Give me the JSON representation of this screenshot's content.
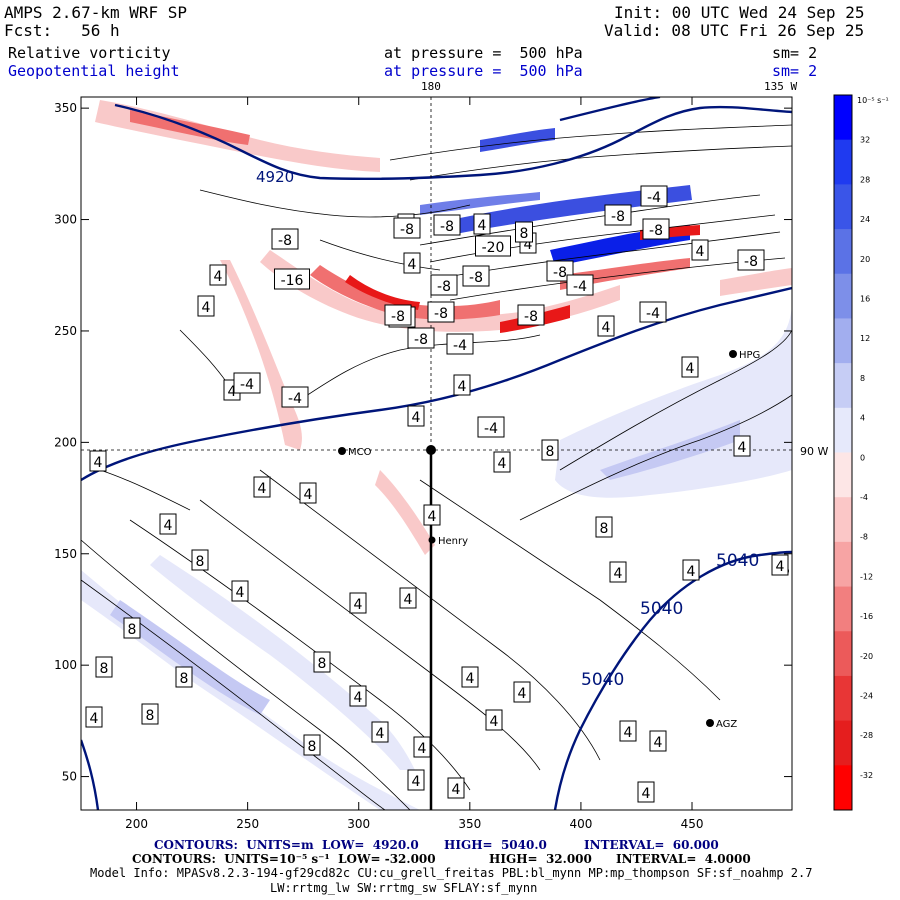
{
  "header": {
    "model": "AMPS 2.67-km WRF SP",
    "fcst": "Fcst:   56 h",
    "init": "Init: 00 UTC Wed 24 Sep 25",
    "valid": "Valid: 08 UTC Fri 26 Sep 25",
    "field1_name": "Relative vorticity",
    "field1_level": "at pressure =  500 hPa",
    "field1_sm": "sm= 2",
    "field2_name": "Geopotential height",
    "field2_level": "at pressure =  500 hPa",
    "field2_sm": "sm= 2"
  },
  "map_labels": {
    "lon_180": "180",
    "lon_135w": "135 W",
    "lon_90w": "90 W",
    "stations": [
      {
        "name": "MCO"
      },
      {
        "name": "Henry"
      },
      {
        "name": "HPG"
      },
      {
        "name": "AGZ"
      }
    ]
  },
  "chart_data": {
    "type": "contour",
    "x_ticks": [
      200,
      250,
      300,
      350,
      400,
      450
    ],
    "y_ticks": [
      50,
      100,
      150,
      200,
      250,
      300,
      350
    ],
    "xlim": [
      175,
      495
    ],
    "ylim": [
      35,
      355
    ],
    "height_contours": [
      {
        "value": 4920,
        "label": "4920"
      },
      {
        "value": 5040,
        "label": "5040"
      }
    ],
    "height_labels": [
      "4920",
      "5040",
      "5040",
      "5040"
    ],
    "vorticity_labels": [
      {
        "x": 285,
        "y": 239,
        "text": "-8"
      },
      {
        "x": 292,
        "y": 279,
        "text": "-16"
      },
      {
        "x": 402,
        "y": 317,
        "text": "-8"
      },
      {
        "x": 421,
        "y": 338,
        "text": "-8"
      },
      {
        "x": 441,
        "y": 312,
        "text": "-8"
      },
      {
        "x": 444,
        "y": 285,
        "text": "-8"
      },
      {
        "x": 476,
        "y": 276,
        "text": "-8"
      },
      {
        "x": 493,
        "y": 246,
        "text": "-20"
      },
      {
        "x": 531,
        "y": 315,
        "text": "-8"
      },
      {
        "x": 560,
        "y": 271,
        "text": "-8"
      },
      {
        "x": 580,
        "y": 285,
        "text": "-4"
      },
      {
        "x": 653,
        "y": 312,
        "text": "-4"
      },
      {
        "x": 656,
        "y": 229,
        "text": "-8"
      },
      {
        "x": 654,
        "y": 196,
        "text": "-4"
      },
      {
        "x": 751,
        "y": 260,
        "text": "-8"
      },
      {
        "x": 407,
        "y": 228,
        "text": "-8"
      },
      {
        "x": 618,
        "y": 215,
        "text": "-8"
      },
      {
        "x": 524,
        "y": 232,
        "text": "8"
      },
      {
        "x": 447,
        "y": 225,
        "text": "-8"
      },
      {
        "x": 247,
        "y": 383,
        "text": "-4"
      },
      {
        "x": 295,
        "y": 397,
        "text": "-4"
      },
      {
        "x": 460,
        "y": 344,
        "text": "-4"
      },
      {
        "x": 491,
        "y": 427,
        "text": "-4"
      },
      {
        "x": 398,
        "y": 315,
        "text": "-8"
      }
    ],
    "colorbar": {
      "units": "10⁻⁵ s⁻¹",
      "ticks": [
        32,
        28,
        24,
        20,
        16,
        12,
        8,
        4,
        0,
        -4,
        -8,
        -12,
        -16,
        -20,
        -24,
        -28,
        -32
      ]
    }
  },
  "footer": {
    "line1_a": "CONTOURS:  UNITS=m  LOW=  4920.0",
    "line1_b": "HIGH=  5040.0",
    "line1_c": "INTERVAL=  60.000",
    "line2_a": "CONTOURS:  UNITS=10⁻⁵ s⁻¹  LOW= -32.000",
    "line2_b": "HIGH=  32.000",
    "line2_c": "INTERVAL=  4.0000",
    "model_info": "Model Info: MPASv8.2.3-194-gf29cd82c CU:cu_grell_freitas PBL:bl_mynn MP:mp_thompson SF:sf_noahmp 2.7",
    "model_info2": "LW:rrtmg_lw SW:rrtmg_sw SFLAY:sf_mynn"
  }
}
